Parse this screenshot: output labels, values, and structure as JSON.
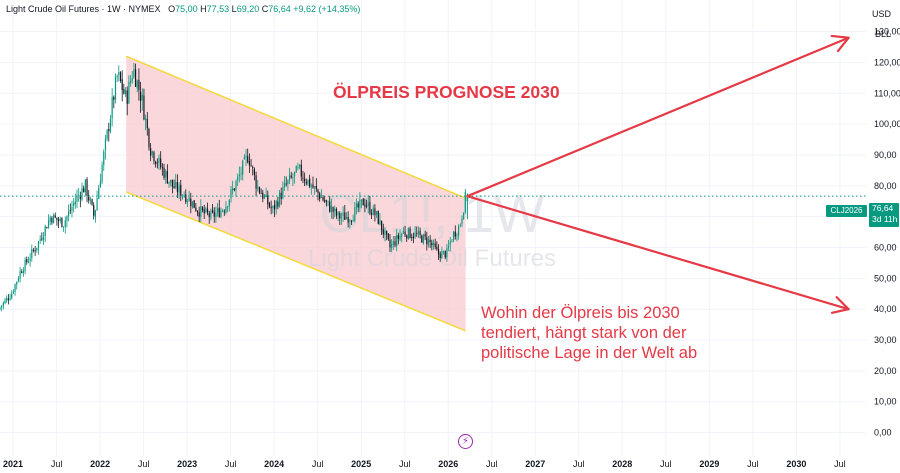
{
  "header": {
    "symbol_title": "Light Crude Oil Futures · 1W · NYMEX",
    "open_label": "O",
    "open_value": "75,00",
    "high_label": "H",
    "high_value": "77,53",
    "low_label": "L",
    "low_value": "69,20",
    "close_label": "C",
    "close_value": "76,64",
    "change": "+9,62 (+14,35%)"
  },
  "currency": {
    "line1": "USD",
    "line2": "BLL"
  },
  "watermark": {
    "symbol": "CL1!, 1W",
    "name": "Light Crude Oil Futures"
  },
  "price_tag": {
    "symbol": "CLJ2026",
    "price": "76,64",
    "countdown": "3d 11h"
  },
  "annotations": {
    "title": "ÖLPREIS PROGNOSE 2030",
    "note_lines": [
      "Wohin der Ölpreis bis 2030",
      "tendiert, hängt stark von der",
      "politische Lage in der Welt ab"
    ]
  },
  "colors": {
    "up": "#089981",
    "down": "#131722",
    "annotation": "#e53946",
    "channel_fill": "#f8c9cd",
    "channel_line": "#f5d93a",
    "price_line": "#089981"
  },
  "icons": {
    "bolt": "lightning-icon"
  },
  "chart_data": {
    "type": "candlestick",
    "timeframe": "1W",
    "y_ticks": [
      "130,00",
      "120,00",
      "110,00",
      "100,00",
      "90,00",
      "80,00",
      "70,00",
      "60,00",
      "50,00",
      "40,00",
      "30,00",
      "20,00",
      "10,00",
      "0,00"
    ],
    "y_range": [
      -5,
      137
    ],
    "x_range": [
      2020.85,
      2030.8
    ],
    "x_ticks": [
      {
        "label": "2021",
        "t": 2021.0
      },
      {
        "label": "Jul",
        "t": 2021.5
      },
      {
        "label": "2022",
        "t": 2022.0
      },
      {
        "label": "Jul",
        "t": 2022.5
      },
      {
        "label": "2023",
        "t": 2023.0
      },
      {
        "label": "Jul",
        "t": 2023.5
      },
      {
        "label": "2024",
        "t": 2024.0
      },
      {
        "label": "Jul",
        "t": 2024.5
      },
      {
        "label": "2025",
        "t": 2025.0
      },
      {
        "label": "Jul",
        "t": 2025.5
      },
      {
        "label": "2026",
        "t": 2026.0
      },
      {
        "label": "Jul",
        "t": 2026.5
      },
      {
        "label": "2027",
        "t": 2027.0
      },
      {
        "label": "Jul",
        "t": 2027.5
      },
      {
        "label": "2028",
        "t": 2028.0
      },
      {
        "label": "Jul",
        "t": 2028.5
      },
      {
        "label": "2029",
        "t": 2029.0
      },
      {
        "label": "Jul",
        "t": 2029.5
      },
      {
        "label": "2030",
        "t": 2030.0
      },
      {
        "label": "Jul",
        "t": 2030.5
      }
    ],
    "price_path": [
      [
        2020.85,
        40
      ],
      [
        2021.0,
        45
      ],
      [
        2021.1,
        52
      ],
      [
        2021.3,
        61
      ],
      [
        2021.45,
        70
      ],
      [
        2021.6,
        68
      ],
      [
        2021.75,
        76
      ],
      [
        2021.85,
        80
      ],
      [
        2021.95,
        70
      ],
      [
        2022.05,
        88
      ],
      [
        2022.15,
        105
      ],
      [
        2022.22,
        116
      ],
      [
        2022.32,
        108
      ],
      [
        2022.4,
        118
      ],
      [
        2022.5,
        108
      ],
      [
        2022.6,
        92
      ],
      [
        2022.72,
        86
      ],
      [
        2022.85,
        80
      ],
      [
        2023.0,
        77
      ],
      [
        2023.15,
        72
      ],
      [
        2023.3,
        70
      ],
      [
        2023.45,
        73
      ],
      [
        2023.6,
        82
      ],
      [
        2023.72,
        90
      ],
      [
        2023.82,
        80
      ],
      [
        2024.0,
        72
      ],
      [
        2024.15,
        80
      ],
      [
        2024.3,
        85
      ],
      [
        2024.45,
        80
      ],
      [
        2024.6,
        75
      ],
      [
        2024.75,
        70
      ],
      [
        2024.9,
        70
      ],
      [
        2025.05,
        75
      ],
      [
        2025.2,
        70
      ],
      [
        2025.35,
        60
      ],
      [
        2025.5,
        65
      ],
      [
        2025.65,
        64
      ],
      [
        2025.8,
        62
      ],
      [
        2025.9,
        58
      ],
      [
        2026.0,
        58
      ],
      [
        2026.07,
        64
      ],
      [
        2026.15,
        67
      ],
      [
        2026.22,
        76.64
      ]
    ],
    "last": {
      "open": 75.0,
      "high": 77.53,
      "low": 69.2,
      "close": 76.64
    },
    "regression_channel": {
      "start": {
        "t": 2022.3,
        "upper": 122,
        "lower": 78
      },
      "end": {
        "t": 2026.2,
        "upper": 76,
        "lower": 33
      }
    },
    "projection_arrows": [
      {
        "from": {
          "t": 2026.22,
          "price": 76.64
        },
        "to": {
          "t": 2030.6,
          "price": 128
        }
      },
      {
        "from": {
          "t": 2026.22,
          "price": 76.64
        },
        "to": {
          "t": 2030.6,
          "price": 40
        }
      }
    ],
    "current_price": 76.64
  }
}
